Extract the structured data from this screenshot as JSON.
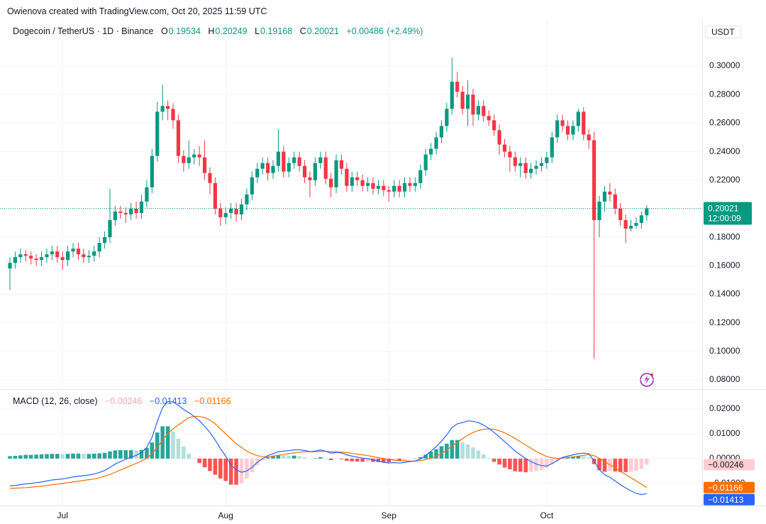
{
  "header": "Owienova created with TradingView.com, Oct 20, 2025 11:59 UTC",
  "chart_data": [
    {
      "type": "candlestick",
      "title": "Dogecoin / TetherUS · 1D · Binance",
      "currency": "USDT",
      "legend_labels": [
        "O",
        "H",
        "L",
        "C"
      ],
      "change": {
        "value": 0.00486,
        "label": "+0.00486"
      },
      "change_percent": {
        "value": 2.49,
        "label": "(+2.49%)"
      },
      "countdown": "12:00:09",
      "categories": [
        null,
        null,
        null,
        null,
        null,
        null,
        null,
        null,
        null,
        null,
        "Jul",
        null,
        null,
        null,
        null,
        null,
        null,
        null,
        null,
        null,
        null,
        null,
        null,
        null,
        null,
        null,
        null,
        null,
        null,
        null,
        null,
        null,
        null,
        null,
        null,
        null,
        null,
        null,
        null,
        null,
        null,
        "Aug",
        null,
        null,
        null,
        null,
        null,
        null,
        null,
        null,
        null,
        null,
        null,
        null,
        null,
        null,
        null,
        null,
        null,
        null,
        null,
        null,
        null,
        null,
        null,
        null,
        null,
        null,
        null,
        null,
        null,
        null,
        "Sep",
        null,
        null,
        null,
        null,
        null,
        null,
        null,
        null,
        null,
        null,
        null,
        null,
        null,
        null,
        null,
        null,
        null,
        null,
        null,
        null,
        null,
        null,
        null,
        null,
        null,
        null,
        null,
        null,
        null,
        "Oct",
        null,
        null,
        null,
        null,
        null,
        null,
        null,
        null,
        null,
        null,
        null,
        null,
        null,
        null,
        null,
        null,
        null,
        null,
        null
      ],
      "open": [
        0.158,
        0.162,
        0.166,
        0.168,
        0.167,
        0.165,
        0.164,
        0.166,
        0.168,
        0.17,
        0.166,
        0.164,
        0.17,
        0.172,
        0.168,
        0.166,
        0.167,
        0.17,
        0.176,
        0.18,
        0.192,
        0.198,
        0.197,
        0.196,
        0.2,
        0.197,
        0.205,
        0.215,
        0.237,
        0.268,
        0.272,
        0.27,
        0.262,
        0.237,
        0.232,
        0.236,
        0.238,
        0.236,
        0.225,
        0.218,
        0.2,
        0.194,
        0.197,
        0.2,
        0.196,
        0.203,
        0.21,
        0.222,
        0.228,
        0.232,
        0.225,
        0.23,
        0.24,
        0.226,
        0.232,
        0.236,
        0.23,
        0.222,
        0.22,
        0.232,
        0.236,
        0.221,
        0.215,
        0.234,
        0.228,
        0.216,
        0.222,
        0.22,
        0.216,
        0.218,
        0.214,
        0.216,
        0.213,
        0.212,
        0.216,
        0.212,
        0.218,
        0.216,
        0.218,
        0.227,
        0.238,
        0.242,
        0.25,
        0.258,
        0.27,
        0.289,
        0.282,
        0.27,
        0.28,
        0.266,
        0.272,
        0.265,
        0.262,
        0.255,
        0.245,
        0.24,
        0.236,
        0.23,
        0.232,
        0.225,
        0.228,
        0.23,
        0.232,
        0.236,
        0.25,
        0.262,
        0.258,
        0.252,
        0.258,
        0.268,
        0.252,
        0.248,
        0.192,
        0.205,
        0.212,
        0.21,
        0.2,
        0.192,
        0.186,
        0.188,
        0.19,
        0.19534
      ],
      "high": [
        0.166,
        0.17,
        0.172,
        0.171,
        0.17,
        0.168,
        0.17,
        0.172,
        0.174,
        0.174,
        0.17,
        0.174,
        0.176,
        0.176,
        0.172,
        0.171,
        0.174,
        0.18,
        0.184,
        0.214,
        0.202,
        0.202,
        0.201,
        0.204,
        0.205,
        0.21,
        0.22,
        0.242,
        0.275,
        0.287,
        0.276,
        0.274,
        0.266,
        0.241,
        0.248,
        0.242,
        0.244,
        0.248,
        0.229,
        0.222,
        0.204,
        0.201,
        0.204,
        0.204,
        0.207,
        0.214,
        0.226,
        0.232,
        0.236,
        0.236,
        0.234,
        0.256,
        0.244,
        0.236,
        0.24,
        0.24,
        0.234,
        0.226,
        0.236,
        0.24,
        0.24,
        0.225,
        0.238,
        0.238,
        0.232,
        0.226,
        0.226,
        0.224,
        0.222,
        0.222,
        0.22,
        0.22,
        0.216,
        0.22,
        0.22,
        0.222,
        0.222,
        0.222,
        0.231,
        0.242,
        0.246,
        0.254,
        0.262,
        0.274,
        0.306,
        0.296,
        0.286,
        0.29,
        0.284,
        0.276,
        0.276,
        0.269,
        0.266,
        0.259,
        0.249,
        0.244,
        0.24,
        0.236,
        0.236,
        0.232,
        0.234,
        0.236,
        0.24,
        0.254,
        0.266,
        0.266,
        0.262,
        0.262,
        0.27,
        0.271,
        0.256,
        0.254,
        0.209,
        0.216,
        0.218,
        0.214,
        0.204,
        0.196,
        0.192,
        0.194,
        0.198,
        0.20249
      ],
      "low": [
        0.143,
        0.158,
        0.162,
        0.163,
        0.161,
        0.16,
        0.16,
        0.162,
        0.164,
        0.162,
        0.157,
        0.16,
        0.166,
        0.164,
        0.162,
        0.162,
        0.163,
        0.166,
        0.172,
        0.176,
        0.188,
        0.193,
        0.19,
        0.192,
        0.193,
        0.193,
        0.201,
        0.211,
        0.233,
        0.262,
        0.262,
        0.256,
        0.232,
        0.226,
        0.228,
        0.231,
        0.23,
        0.22,
        0.21,
        0.196,
        0.188,
        0.189,
        0.193,
        0.191,
        0.192,
        0.199,
        0.206,
        0.218,
        0.224,
        0.22,
        0.221,
        0.226,
        0.222,
        0.222,
        0.228,
        0.226,
        0.218,
        0.208,
        0.216,
        0.228,
        0.217,
        0.208,
        0.211,
        0.224,
        0.212,
        0.212,
        0.216,
        0.212,
        0.212,
        0.21,
        0.21,
        0.209,
        0.205,
        0.208,
        0.208,
        0.208,
        0.212,
        0.212,
        0.214,
        0.223,
        0.234,
        0.238,
        0.246,
        0.254,
        0.266,
        0.278,
        0.266,
        0.258,
        0.258,
        0.262,
        0.261,
        0.258,
        0.251,
        0.238,
        0.236,
        0.226,
        0.226,
        0.222,
        0.221,
        0.221,
        0.224,
        0.226,
        0.228,
        0.232,
        0.246,
        0.254,
        0.248,
        0.248,
        0.254,
        0.248,
        0.242,
        0.095,
        0.18,
        0.198,
        0.205,
        0.196,
        0.188,
        0.176,
        0.184,
        0.186,
        0.186,
        0.19168
      ],
      "close": [
        0.162,
        0.166,
        0.168,
        0.167,
        0.165,
        0.164,
        0.166,
        0.168,
        0.17,
        0.166,
        0.164,
        0.17,
        0.172,
        0.168,
        0.166,
        0.167,
        0.17,
        0.176,
        0.18,
        0.192,
        0.198,
        0.197,
        0.196,
        0.2,
        0.197,
        0.205,
        0.215,
        0.237,
        0.268,
        0.272,
        0.27,
        0.262,
        0.237,
        0.232,
        0.236,
        0.238,
        0.236,
        0.225,
        0.218,
        0.2,
        0.194,
        0.197,
        0.2,
        0.196,
        0.203,
        0.21,
        0.222,
        0.228,
        0.232,
        0.225,
        0.23,
        0.24,
        0.226,
        0.232,
        0.236,
        0.23,
        0.222,
        0.22,
        0.232,
        0.236,
        0.221,
        0.215,
        0.234,
        0.228,
        0.216,
        0.222,
        0.22,
        0.216,
        0.218,
        0.214,
        0.216,
        0.213,
        0.212,
        0.216,
        0.212,
        0.218,
        0.216,
        0.218,
        0.227,
        0.238,
        0.242,
        0.25,
        0.258,
        0.27,
        0.289,
        0.282,
        0.27,
        0.28,
        0.266,
        0.272,
        0.265,
        0.262,
        0.255,
        0.245,
        0.24,
        0.236,
        0.23,
        0.232,
        0.225,
        0.228,
        0.23,
        0.232,
        0.236,
        0.25,
        0.262,
        0.258,
        0.252,
        0.258,
        0.268,
        0.252,
        0.248,
        0.192,
        0.205,
        0.212,
        0.21,
        0.2,
        0.192,
        0.186,
        0.188,
        0.19,
        0.19534,
        0.20021
      ],
      "up_color": "#089981",
      "down_color": "#f23645",
      "ylim": [
        0.0735,
        0.3324
      ],
      "yticks": [
        {
          "value": 0.08,
          "label": "0.08000"
        },
        {
          "value": 0.1,
          "label": "0.10000"
        },
        {
          "value": 0.12,
          "label": "0.12000"
        },
        {
          "value": 0.14,
          "label": "0.14000"
        },
        {
          "value": 0.16,
          "label": "0.16000"
        },
        {
          "value": 0.18,
          "label": "0.18000"
        },
        {
          "value": 0.2,
          "label": "0.20000"
        },
        {
          "value": 0.22,
          "label": "0.22000"
        },
        {
          "value": 0.24,
          "label": "0.24000"
        },
        {
          "value": 0.26,
          "label": "0.26000"
        },
        {
          "value": 0.28,
          "label": "0.28000"
        },
        {
          "value": 0.3,
          "label": "0.30000"
        }
      ],
      "grid": true
    },
    {
      "type": "macd",
      "title": "MACD (12, 26, close)",
      "histogram": [
        0.001,
        0.0011,
        0.0013,
        0.0015,
        0.0015,
        0.0016,
        0.0017,
        0.0018,
        0.0019,
        0.0019,
        0.0018,
        0.0019,
        0.002,
        0.002,
        0.0019,
        0.0019,
        0.002,
        0.0021,
        0.0023,
        0.0029,
        0.0033,
        0.0034,
        0.0034,
        0.0034,
        0.0032,
        0.0035,
        0.0043,
        0.0065,
        0.0105,
        0.013,
        0.013,
        0.0108,
        0.008,
        0.0048,
        0.002,
        0.0,
        -0.0018,
        -0.0035,
        -0.005,
        -0.0065,
        -0.008,
        -0.009,
        -0.0105,
        -0.0105,
        -0.01,
        -0.008,
        -0.0055,
        -0.0027,
        -0.0008,
        0.0005,
        0.001,
        0.0015,
        0.0013,
        0.0012,
        0.0012,
        0.001,
        0.0005,
        0.0,
        0.0002,
        0.0006,
        0.0001,
        -0.0006,
        -0.0002,
        -0.0003,
        -0.0009,
        -0.0011,
        -0.0012,
        -0.0013,
        -0.0012,
        -0.0013,
        -0.0014,
        -0.0015,
        -0.0015,
        -0.001,
        -0.001,
        -0.0006,
        -0.0002,
        0.0,
        0.0006,
        0.0016,
        0.0028,
        0.0038,
        0.005,
        0.006,
        0.0075,
        0.0075,
        0.0065,
        0.0057,
        0.0045,
        0.0032,
        0.0017,
        0.0002,
        -0.0013,
        -0.0024,
        -0.0036,
        -0.0043,
        -0.0051,
        -0.0053,
        -0.0055,
        -0.0054,
        -0.0051,
        -0.0046,
        -0.0038,
        -0.0023,
        -0.0009,
        0.0003,
        0.0006,
        0.0008,
        0.001,
        0.0009,
        0.0004,
        -0.0022,
        -0.0046,
        -0.0053,
        -0.005,
        -0.0052,
        -0.0054,
        -0.0054,
        -0.0053,
        -0.005,
        -0.0042,
        -0.00246
      ],
      "histogram_last_label": "−0.00246",
      "macd": [
        -0.011,
        -0.0108,
        -0.0105,
        -0.0102,
        -0.01,
        -0.0097,
        -0.0094,
        -0.009,
        -0.0086,
        -0.0084,
        -0.0082,
        -0.0078,
        -0.0074,
        -0.0071,
        -0.0069,
        -0.0066,
        -0.0062,
        -0.0056,
        -0.0048,
        -0.0035,
        -0.0022,
        -0.0012,
        -0.0003,
        0.0006,
        0.0013,
        0.0025,
        0.0045,
        0.0085,
        0.015,
        0.0205,
        0.023,
        0.0228,
        0.0215,
        0.0198,
        0.0185,
        0.017,
        0.0152,
        0.013,
        0.0105,
        0.0075,
        0.004,
        0.001,
        -0.0025,
        -0.0045,
        -0.0055,
        -0.005,
        -0.0035,
        -0.0015,
        0.0,
        0.0012,
        0.002,
        0.0028,
        0.003,
        0.0032,
        0.0035,
        0.0036,
        0.0033,
        0.0028,
        0.003,
        0.0035,
        0.003,
        0.0022,
        0.0025,
        0.0023,
        0.0015,
        0.001,
        0.0006,
        0.0002,
        0.0,
        -0.0005,
        -0.001,
        -0.0015,
        -0.0018,
        -0.0016,
        -0.0018,
        -0.0015,
        -0.0012,
        -0.001,
        -0.0002,
        0.0012,
        0.003,
        0.0048,
        0.007,
        0.0095,
        0.0125,
        0.014,
        0.0145,
        0.0152,
        0.015,
        0.0145,
        0.0135,
        0.0122,
        0.0105,
        0.0088,
        0.0068,
        0.005,
        0.003,
        0.0015,
        0.0,
        -0.0012,
        -0.0022,
        -0.0028,
        -0.003,
        -0.002,
        -0.0008,
        0.0005,
        0.001,
        0.0015,
        0.002,
        0.0022,
        0.002,
        -0.001,
        -0.0045,
        -0.0065,
        -0.0075,
        -0.009,
        -0.0105,
        -0.0118,
        -0.013,
        -0.014,
        -0.0145,
        -0.01413
      ],
      "macd_last_label": "−0.01413",
      "signal": [
        -0.012,
        -0.0119,
        -0.0118,
        -0.0117,
        -0.0115,
        -0.0113,
        -0.0111,
        -0.0108,
        -0.0105,
        -0.0103,
        -0.01,
        -0.0097,
        -0.0094,
        -0.0091,
        -0.0088,
        -0.0085,
        -0.0082,
        -0.0077,
        -0.0071,
        -0.0064,
        -0.0055,
        -0.0046,
        -0.0037,
        -0.0028,
        -0.0019,
        -0.001,
        0.0002,
        0.002,
        0.0045,
        0.0075,
        0.01,
        0.012,
        0.0135,
        0.015,
        0.0165,
        0.017,
        0.017,
        0.0165,
        0.0155,
        0.014,
        0.012,
        0.01,
        0.008,
        0.006,
        0.0045,
        0.003,
        0.002,
        0.0012,
        0.0008,
        0.0007,
        0.001,
        0.0013,
        0.0017,
        0.002,
        0.0023,
        0.0026,
        0.0028,
        0.0028,
        0.0028,
        0.0029,
        0.0029,
        0.0028,
        0.0027,
        0.0026,
        0.0024,
        0.0021,
        0.0018,
        0.0015,
        0.0012,
        0.0008,
        0.0004,
        0.0,
        -0.0003,
        -0.0006,
        -0.0008,
        -0.0009,
        -0.001,
        -0.001,
        -0.0008,
        -0.0004,
        0.0002,
        0.001,
        0.002,
        0.0035,
        0.005,
        0.0065,
        0.008,
        0.0095,
        0.0105,
        0.0113,
        0.0118,
        0.012,
        0.0118,
        0.0112,
        0.0104,
        0.0093,
        0.0081,
        0.0068,
        0.0055,
        0.0042,
        0.0029,
        0.0018,
        0.0008,
        0.0003,
        0.0001,
        0.0002,
        0.0004,
        0.0007,
        0.001,
        0.0013,
        0.0016,
        0.0012,
        0.0001,
        -0.0012,
        -0.0025,
        -0.0038,
        -0.0051,
        -0.0064,
        -0.0077,
        -0.009,
        -0.0103,
        -0.01166
      ],
      "signal_last_label": "−0.01166",
      "macd_color": "#2962ff",
      "signal_color": "#ff6d00",
      "histogram_colors": {
        "grow_above": "#26a69a",
        "fall_above": "#b2dfdb",
        "grow_below": "#ff5252",
        "fall_below": "#ffcdd2"
      },
      "ylim": [
        -0.0189,
        0.0277
      ],
      "yticks": [
        {
          "value": -0.01,
          "label": "−0.01000"
        },
        {
          "value": 0,
          "label": "0.00000"
        },
        {
          "value": 0.01,
          "label": "0.01000"
        },
        {
          "value": 0.02,
          "label": "0.02000"
        }
      ],
      "grid": true
    }
  ]
}
